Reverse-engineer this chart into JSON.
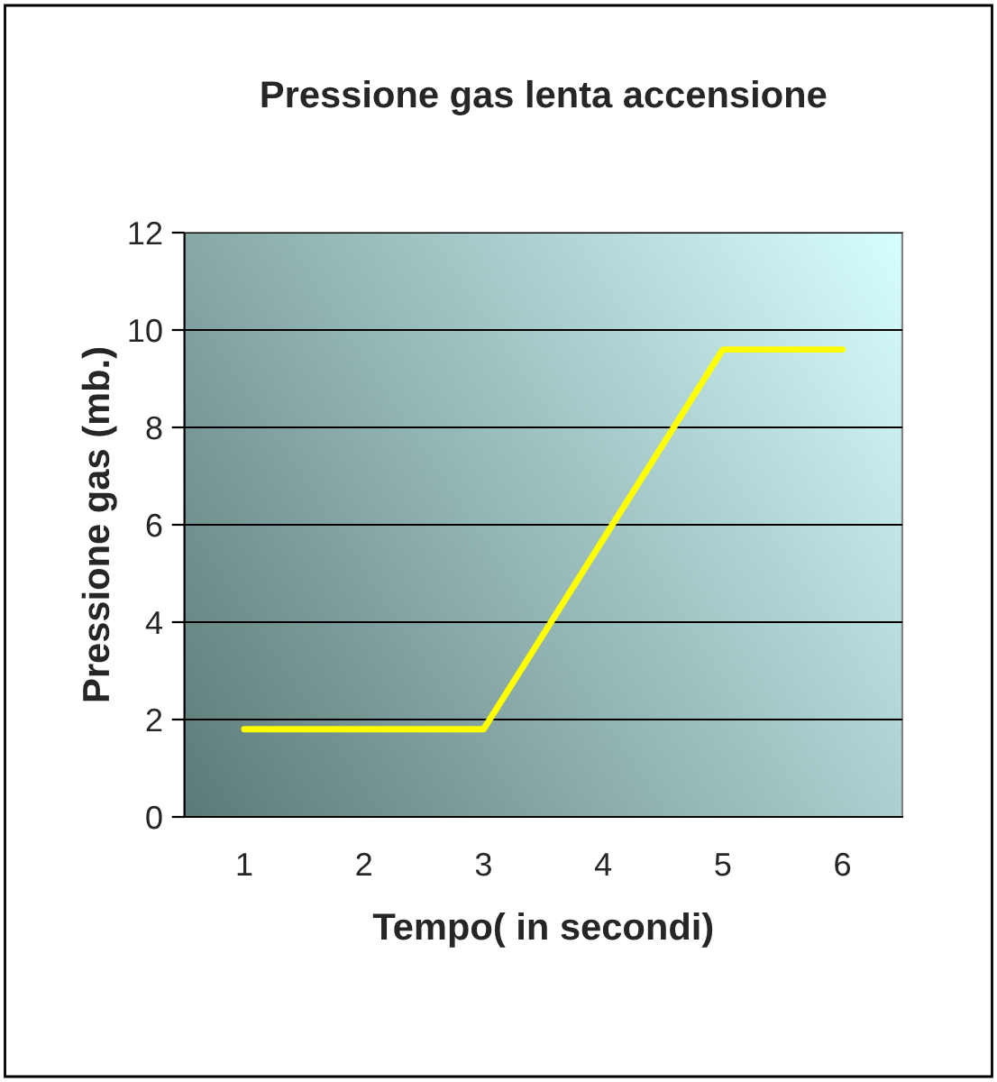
{
  "chart_data": {
    "type": "line",
    "title": "Pressione gas lenta accensione",
    "xlabel": "Tempo( in secondi)",
    "ylabel": "Pressione gas (mb.)",
    "categories": [
      "1",
      "2",
      "3",
      "4",
      "5",
      "6"
    ],
    "series": [
      {
        "color": "#ffff00",
        "values": [
          1.8,
          1.8,
          1.8,
          5.7,
          9.6,
          9.6
        ]
      }
    ],
    "ylim": [
      0,
      12
    ],
    "yticks": [
      0,
      2,
      4,
      6,
      8,
      10,
      12
    ],
    "grid": "y",
    "legend": false,
    "marker": "none",
    "line_style": "solid"
  }
}
